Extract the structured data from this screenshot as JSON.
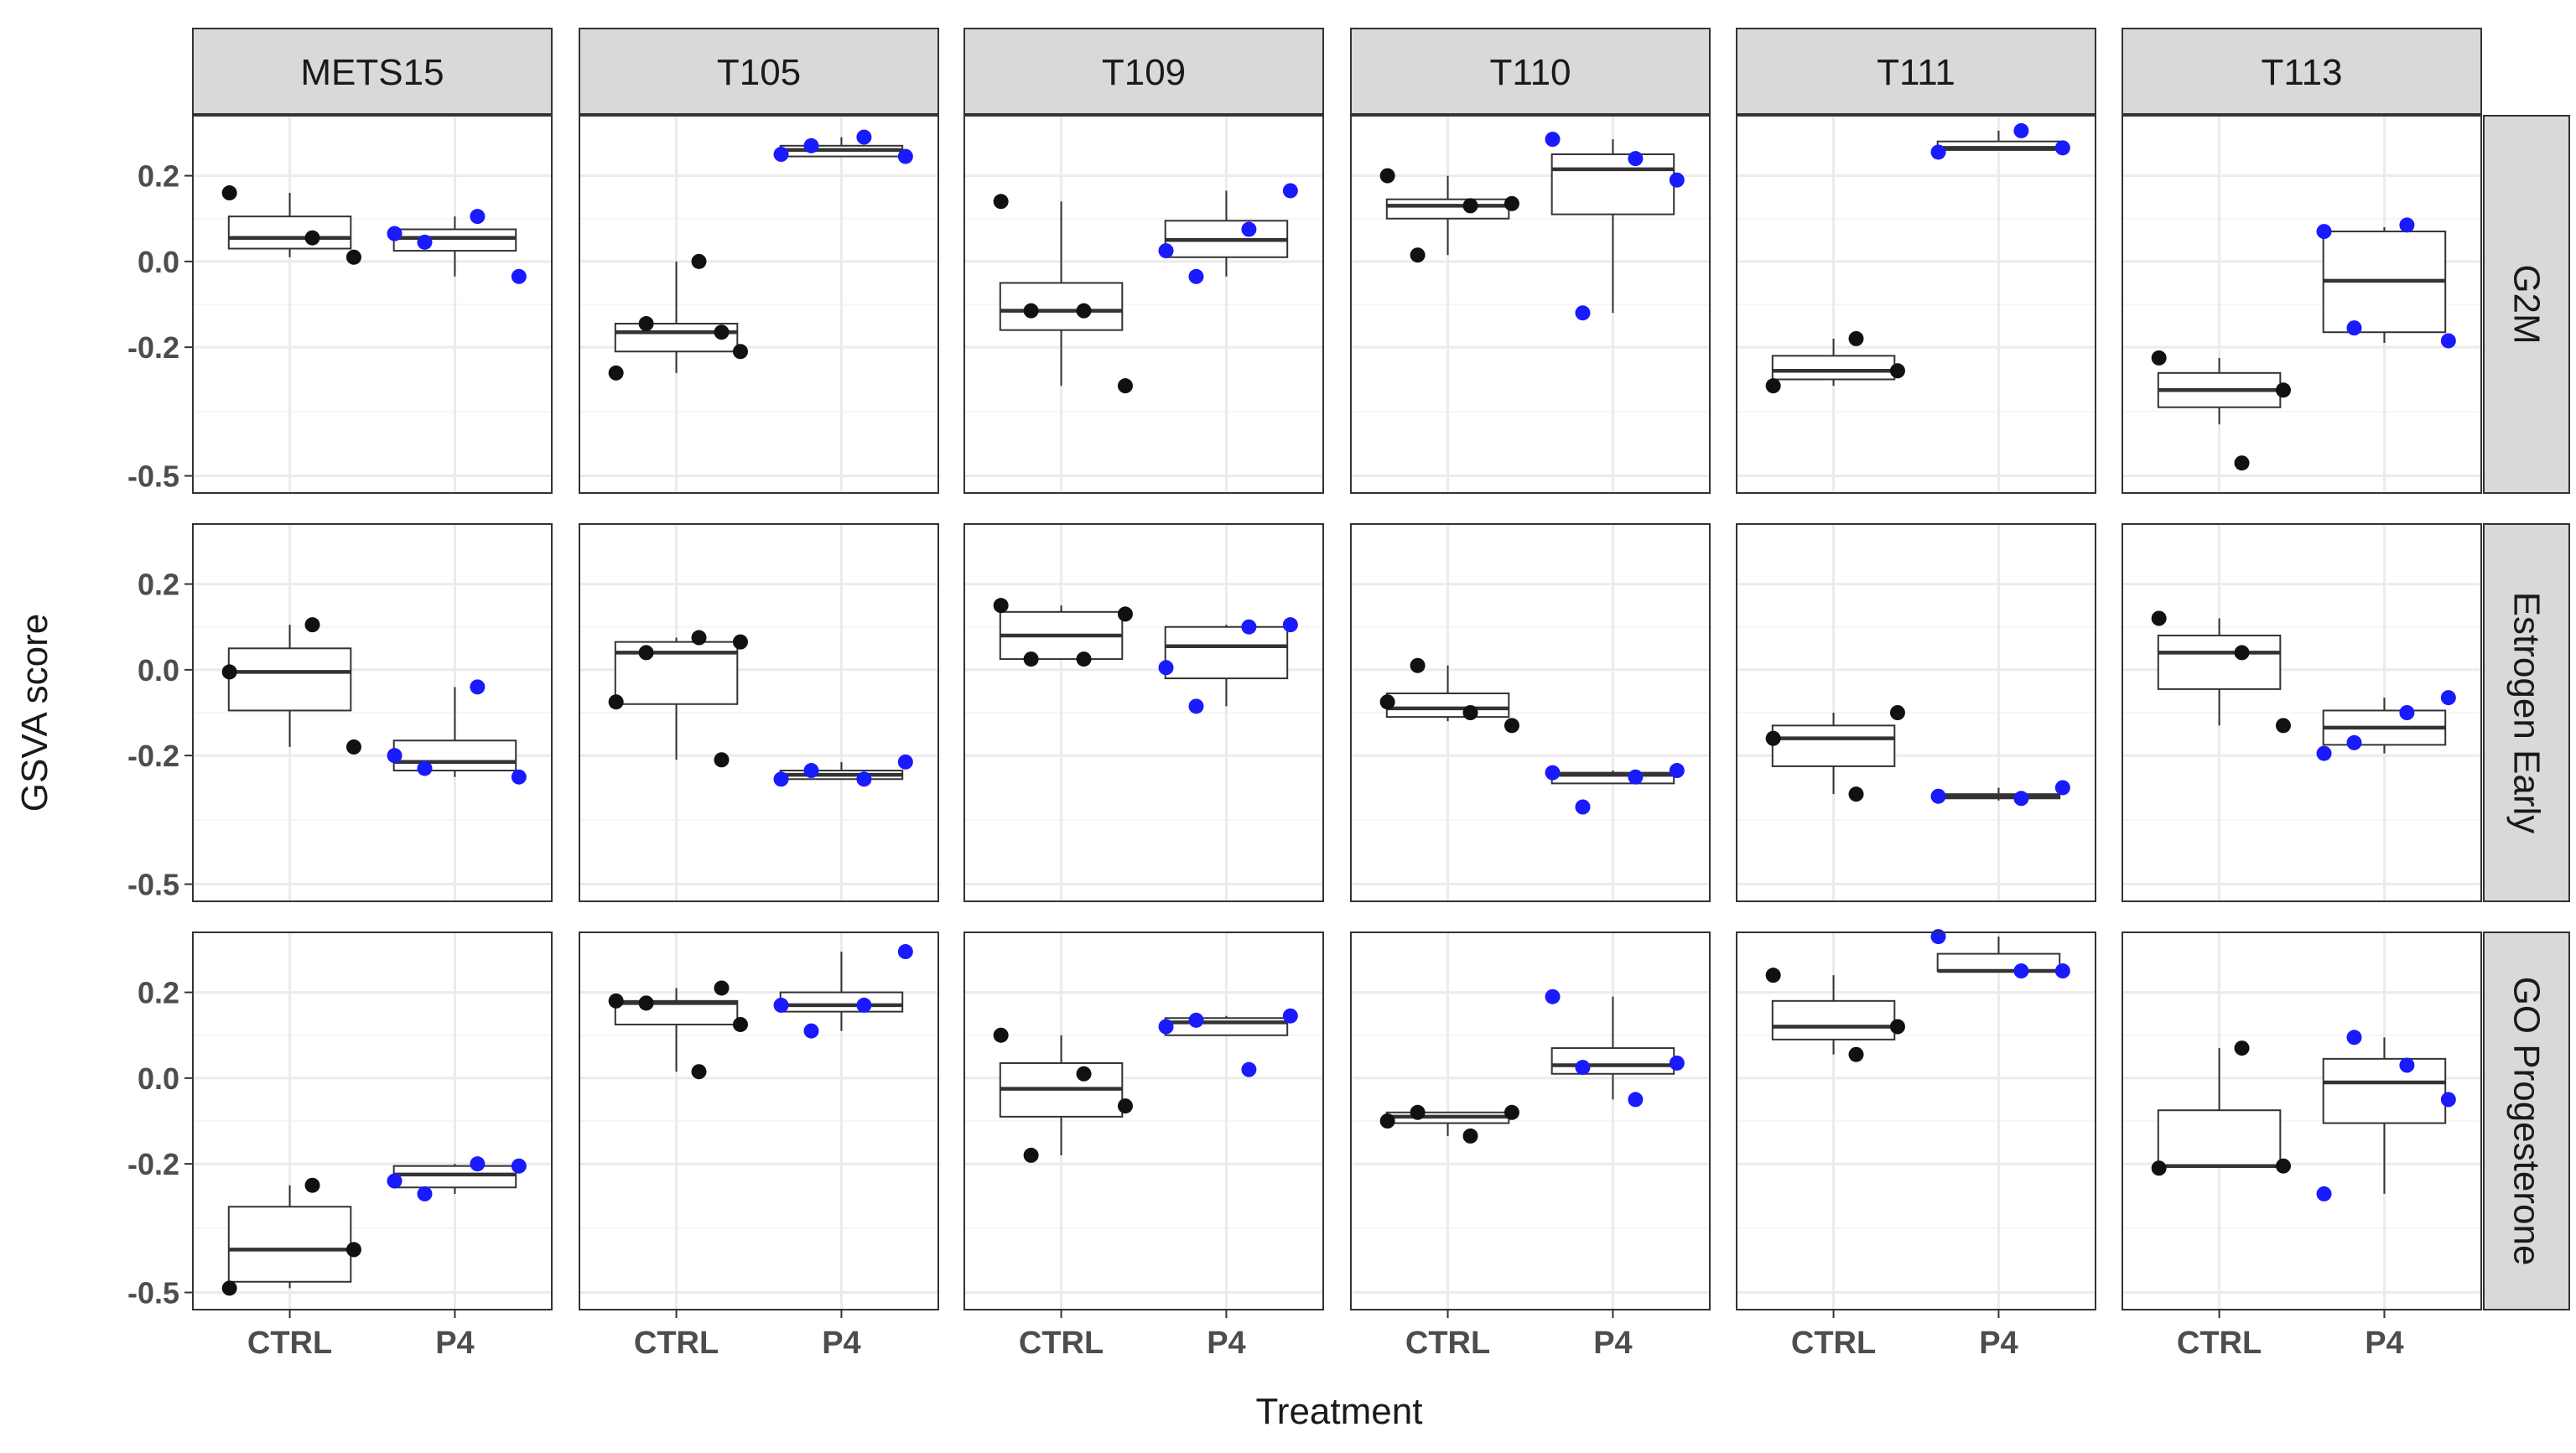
{
  "chart_data": {
    "type": "boxplot",
    "xlabel": "Treatment",
    "ylabel": "GSVA score",
    "categories": [
      "CTRL",
      "P4"
    ],
    "y_ticks": [
      -0.5,
      -0.2,
      0.0,
      0.2
    ],
    "y_tick_labels": [
      "-0.5",
      "-0.2",
      "0.0",
      "0.2"
    ],
    "ylim": [
      -0.54,
      0.34
    ],
    "grid": true,
    "colors": {
      "CTRL": "#111111",
      "P4": "#1a1aff",
      "strip_bg": "#d9d9d9",
      "grid": "#ebebeb"
    },
    "columns": [
      "METS15",
      "T105",
      "T109",
      "T110",
      "T111",
      "T113"
    ],
    "rows": [
      "G2M",
      "Estrogen Early",
      "GO Progesterone"
    ],
    "panels": [
      {
        "col": "METS15",
        "row": "G2M",
        "CTRL": {
          "box": {
            "q1": 0.03,
            "median": 0.055,
            "q3": 0.105,
            "lo": 0.01,
            "hi": 0.16
          },
          "points": [
            0.16,
            0.055,
            0.01
          ]
        },
        "P4": {
          "box": {
            "q1": 0.025,
            "median": 0.055,
            "q3": 0.075,
            "lo": -0.035,
            "hi": 0.105
          },
          "points": [
            0.065,
            0.105,
            -0.035,
            0.045
          ]
        }
      },
      {
        "col": "T105",
        "row": "G2M",
        "CTRL": {
          "box": {
            "q1": -0.21,
            "median": -0.165,
            "q3": -0.145,
            "lo": -0.26,
            "hi": 0.0
          },
          "points": [
            -0.26,
            0.0,
            -0.21,
            -0.145,
            -0.165
          ]
        },
        "P4": {
          "box": {
            "q1": 0.245,
            "median": 0.26,
            "q3": 0.27,
            "lo": 0.245,
            "hi": 0.29
          },
          "points": [
            0.25,
            0.29,
            0.245,
            0.27
          ]
        }
      },
      {
        "col": "T109",
        "row": "G2M",
        "CTRL": {
          "box": {
            "q1": -0.16,
            "median": -0.115,
            "q3": -0.05,
            "lo": -0.29,
            "hi": 0.14
          },
          "points": [
            0.14,
            -0.115,
            -0.29,
            -0.115
          ]
        },
        "P4": {
          "box": {
            "q1": 0.01,
            "median": 0.05,
            "q3": 0.095,
            "lo": -0.035,
            "hi": 0.165
          },
          "points": [
            0.025,
            0.075,
            0.165,
            -0.035
          ]
        }
      },
      {
        "col": "T110",
        "row": "G2M",
        "CTRL": {
          "box": {
            "q1": 0.1,
            "median": 0.13,
            "q3": 0.145,
            "lo": 0.015,
            "hi": 0.2
          },
          "points": [
            0.2,
            0.13,
            0.135,
            0.015
          ]
        },
        "P4": {
          "box": {
            "q1": 0.11,
            "median": 0.215,
            "q3": 0.25,
            "lo": -0.12,
            "hi": 0.285
          },
          "points": [
            0.285,
            0.24,
            0.19,
            -0.12
          ]
        }
      },
      {
        "col": "T111",
        "row": "G2M",
        "CTRL": {
          "box": {
            "q1": -0.275,
            "median": -0.255,
            "q3": -0.22,
            "lo": -0.29,
            "hi": -0.18
          },
          "points": [
            -0.29,
            -0.18,
            -0.255
          ]
        },
        "P4": {
          "box": {
            "q1": 0.26,
            "median": 0.265,
            "q3": 0.28,
            "lo": 0.26,
            "hi": 0.305
          },
          "points": [
            0.255,
            0.305,
            0.265
          ]
        }
      },
      {
        "col": "T113",
        "row": "G2M",
        "CTRL": {
          "box": {
            "q1": -0.34,
            "median": -0.3,
            "q3": -0.26,
            "lo": -0.38,
            "hi": -0.225
          },
          "points": [
            -0.225,
            -0.47,
            -0.3
          ]
        },
        "P4": {
          "box": {
            "q1": -0.165,
            "median": -0.045,
            "q3": 0.07,
            "lo": -0.19,
            "hi": 0.08
          },
          "points": [
            0.07,
            0.085,
            -0.185,
            -0.155
          ]
        }
      },
      {
        "col": "METS15",
        "row": "Estrogen Early",
        "CTRL": {
          "box": {
            "q1": -0.095,
            "median": -0.005,
            "q3": 0.05,
            "lo": -0.18,
            "hi": 0.105
          },
          "points": [
            -0.005,
            0.105,
            -0.18
          ]
        },
        "P4": {
          "box": {
            "q1": -0.235,
            "median": -0.215,
            "q3": -0.165,
            "lo": -0.25,
            "hi": -0.04
          },
          "points": [
            -0.2,
            -0.04,
            -0.25,
            -0.23
          ]
        }
      },
      {
        "col": "T105",
        "row": "Estrogen Early",
        "CTRL": {
          "box": {
            "q1": -0.08,
            "median": 0.04,
            "q3": 0.065,
            "lo": -0.21,
            "hi": 0.075
          },
          "points": [
            -0.075,
            0.075,
            0.065,
            0.04,
            -0.21
          ]
        },
        "P4": {
          "box": {
            "q1": -0.255,
            "median": -0.245,
            "q3": -0.235,
            "lo": -0.255,
            "hi": -0.215
          },
          "points": [
            -0.255,
            -0.255,
            -0.215,
            -0.235
          ]
        }
      },
      {
        "col": "T109",
        "row": "Estrogen Early",
        "CTRL": {
          "box": {
            "q1": 0.025,
            "median": 0.08,
            "q3": 0.135,
            "lo": 0.025,
            "hi": 0.15
          },
          "points": [
            0.15,
            0.025,
            0.13,
            0.025
          ]
        },
        "P4": {
          "box": {
            "q1": -0.02,
            "median": 0.055,
            "q3": 0.1,
            "lo": -0.085,
            "hi": 0.105
          },
          "points": [
            0.005,
            0.1,
            0.105,
            -0.085
          ]
        }
      },
      {
        "col": "T110",
        "row": "Estrogen Early",
        "CTRL": {
          "box": {
            "q1": -0.11,
            "median": -0.09,
            "q3": -0.055,
            "lo": -0.12,
            "hi": 0.01
          },
          "points": [
            -0.075,
            -0.1,
            -0.13,
            0.01
          ]
        },
        "P4": {
          "box": {
            "q1": -0.265,
            "median": -0.245,
            "q3": -0.24,
            "lo": -0.265,
            "hi": -0.235
          },
          "points": [
            -0.24,
            -0.25,
            -0.235,
            -0.32
          ]
        }
      },
      {
        "col": "T111",
        "row": "Estrogen Early",
        "CTRL": {
          "box": {
            "q1": -0.225,
            "median": -0.16,
            "q3": -0.13,
            "lo": -0.29,
            "hi": -0.1
          },
          "points": [
            -0.16,
            -0.29,
            -0.1
          ]
        },
        "P4": {
          "box": {
            "q1": -0.3,
            "median": -0.295,
            "q3": -0.29,
            "lo": -0.305,
            "hi": -0.275
          },
          "points": [
            -0.295,
            -0.3,
            -0.275
          ]
        }
      },
      {
        "col": "T113",
        "row": "Estrogen Early",
        "CTRL": {
          "box": {
            "q1": -0.045,
            "median": 0.04,
            "q3": 0.08,
            "lo": -0.13,
            "hi": 0.12
          },
          "points": [
            0.12,
            0.04,
            -0.13
          ]
        },
        "P4": {
          "box": {
            "q1": -0.175,
            "median": -0.135,
            "q3": -0.095,
            "lo": -0.195,
            "hi": -0.065
          },
          "points": [
            -0.195,
            -0.1,
            -0.065,
            -0.17
          ]
        }
      },
      {
        "col": "METS15",
        "row": "GO Progesterone",
        "CTRL": {
          "box": {
            "q1": -0.475,
            "median": -0.4,
            "q3": -0.3,
            "lo": -0.49,
            "hi": -0.25
          },
          "points": [
            -0.49,
            -0.25,
            -0.4
          ]
        },
        "P4": {
          "box": {
            "q1": -0.255,
            "median": -0.225,
            "q3": -0.205,
            "lo": -0.27,
            "hi": -0.2
          },
          "points": [
            -0.24,
            -0.2,
            -0.205,
            -0.27
          ]
        }
      },
      {
        "col": "T105",
        "row": "GO Progesterone",
        "CTRL": {
          "box": {
            "q1": 0.125,
            "median": 0.175,
            "q3": 0.18,
            "lo": 0.015,
            "hi": 0.21
          },
          "points": [
            0.18,
            0.015,
            0.125,
            0.175,
            0.21
          ]
        },
        "P4": {
          "box": {
            "q1": 0.155,
            "median": 0.17,
            "q3": 0.2,
            "lo": 0.11,
            "hi": 0.295
          },
          "points": [
            0.17,
            0.17,
            0.295,
            0.11
          ]
        }
      },
      {
        "col": "T109",
        "row": "GO Progesterone",
        "CTRL": {
          "box": {
            "q1": -0.09,
            "median": -0.025,
            "q3": 0.035,
            "lo": -0.18,
            "hi": 0.1
          },
          "points": [
            0.1,
            0.01,
            -0.065,
            -0.18
          ]
        },
        "P4": {
          "box": {
            "q1": 0.1,
            "median": 0.13,
            "q3": 0.14,
            "lo": 0.1,
            "hi": 0.145
          },
          "points": [
            0.12,
            0.02,
            0.145,
            0.135
          ]
        }
      },
      {
        "col": "T110",
        "row": "GO Progesterone",
        "CTRL": {
          "box": {
            "q1": -0.105,
            "median": -0.09,
            "q3": -0.08,
            "lo": -0.135,
            "hi": -0.08
          },
          "points": [
            -0.1,
            -0.135,
            -0.08,
            -0.08
          ]
        },
        "P4": {
          "box": {
            "q1": 0.01,
            "median": 0.03,
            "q3": 0.07,
            "lo": -0.05,
            "hi": 0.19
          },
          "points": [
            0.19,
            -0.05,
            0.035,
            0.025
          ]
        }
      },
      {
        "col": "T111",
        "row": "GO Progesterone",
        "CTRL": {
          "box": {
            "q1": 0.09,
            "median": 0.12,
            "q3": 0.18,
            "lo": 0.055,
            "hi": 0.24
          },
          "points": [
            0.24,
            0.055,
            0.12
          ]
        },
        "P4": {
          "box": {
            "q1": 0.25,
            "median": 0.25,
            "q3": 0.29,
            "lo": 0.25,
            "hi": 0.33
          },
          "points": [
            0.33,
            0.25,
            0.25
          ]
        }
      },
      {
        "col": "T113",
        "row": "GO Progesterone",
        "CTRL": {
          "box": {
            "q1": -0.205,
            "median": -0.205,
            "q3": -0.075,
            "lo": -0.205,
            "hi": 0.07
          },
          "points": [
            -0.21,
            0.07,
            -0.205
          ]
        },
        "P4": {
          "box": {
            "q1": -0.105,
            "median": -0.01,
            "q3": 0.045,
            "lo": -0.27,
            "hi": 0.095
          },
          "points": [
            -0.27,
            0.03,
            -0.05,
            0.095
          ]
        }
      }
    ]
  }
}
